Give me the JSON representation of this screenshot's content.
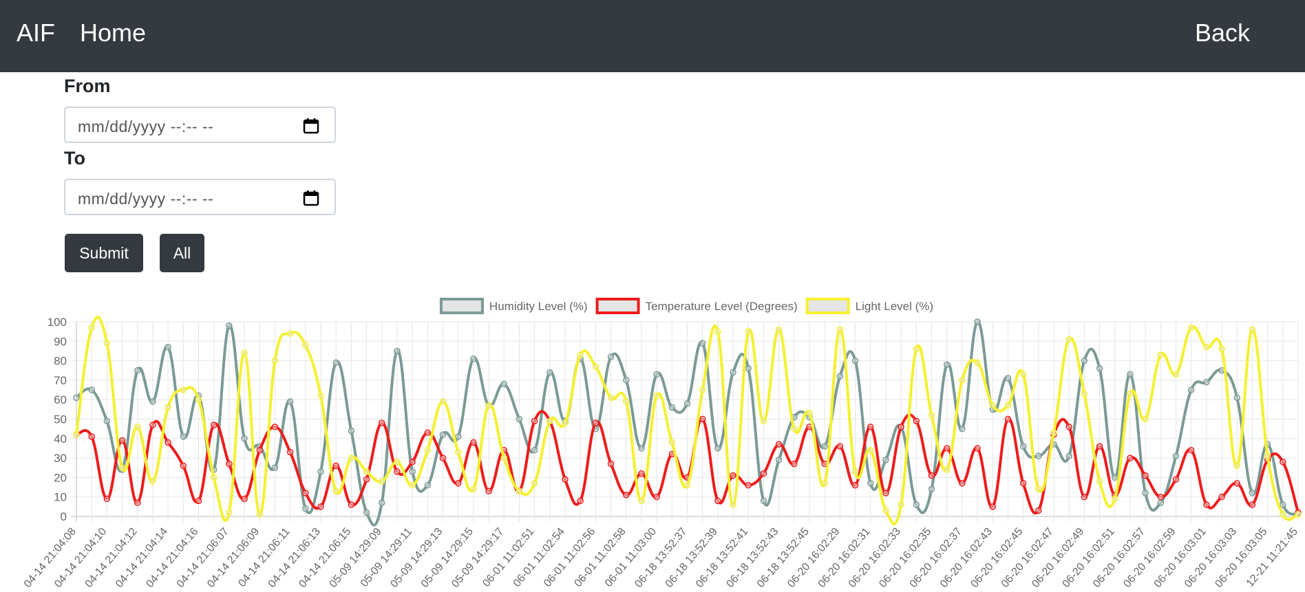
{
  "nav": {
    "brand": "AIF",
    "home": "Home",
    "back": "Back"
  },
  "form": {
    "from_label": "From",
    "from_placeholder": "mm/dd/yyyy --:-- --",
    "to_label": "To",
    "to_placeholder": "mm/dd/yyyy --:-- --",
    "submit": "Submit",
    "all": "All"
  },
  "chart_data": {
    "type": "line",
    "categories": [
      "04-14 21:04:08",
      null,
      "04-14 21:04:10",
      null,
      "04-14 21:04:12",
      null,
      "04-14 21:04:14",
      null,
      "04-14 21:04:16",
      null,
      "04-14 21:06:07",
      null,
      "04-14 21:06:09",
      null,
      "04-14 21:06:11",
      null,
      "04-14 21:06:13",
      null,
      "04-14 21:06:15",
      null,
      "05-09 14:29:09",
      null,
      "05-09 14:29:11",
      null,
      "05-09 14:29:13",
      null,
      "05-09 14:29:15",
      null,
      "05-09 14:29:17",
      null,
      "06-01 11:02:51",
      null,
      "06-01 11:02:54",
      null,
      "06-01 11:02:56",
      null,
      "06-01 11:02:58",
      null,
      "06-01 11:03:00",
      null,
      "06-18 13:52:37",
      null,
      "06-18 13:52:39",
      null,
      "06-18 13:52:41",
      null,
      "06-18 13:52:43",
      null,
      "06-18 13:52:45",
      null,
      "06-20 16:02:29",
      null,
      "06-20 16:02:31",
      null,
      "06-20 16:02:33",
      null,
      "06-20 16:02:35",
      null,
      "06-20 16:02:37",
      null,
      "06-20 16:02:43",
      null,
      "06-20 16:02:45",
      null,
      "06-20 16:02:47",
      null,
      "06-20 16:02:49",
      null,
      "06-20 16:02:51",
      null,
      "06-20 16:02:57",
      null,
      "06-20 16:02:59",
      null,
      "06-20 16:03:01",
      null,
      "06-20 16:03:03",
      null,
      "06-20 16:03:05",
      null,
      "12-21 11:21:45"
    ],
    "series": [
      {
        "name": "Humidity Level (%)",
        "color": "#7a9a95",
        "values": [
          61,
          65,
          49,
          24,
          75,
          59,
          87,
          41,
          62,
          24,
          98,
          40,
          36,
          25,
          59,
          4,
          23,
          79,
          44,
          2,
          7,
          85,
          23,
          16,
          42,
          41,
          81,
          57,
          68,
          50,
          34,
          74,
          49,
          81,
          45,
          82,
          70,
          35,
          73,
          56,
          58,
          89,
          35,
          74,
          76,
          8,
          29,
          51,
          51,
          36,
          72,
          80,
          17,
          29,
          46,
          6,
          14,
          78,
          45,
          100,
          55,
          71,
          36,
          31,
          37,
          31,
          80,
          76,
          20,
          73,
          12,
          7,
          31,
          65,
          69,
          75,
          61,
          12,
          37,
          6,
          1
        ]
      },
      {
        "name": "Temperature Level (Degrees)",
        "color": "#ee1c1c",
        "values": [
          42,
          41,
          9,
          39,
          7,
          47,
          38,
          26,
          8,
          47,
          27,
          9,
          34,
          46,
          33,
          12,
          5,
          26,
          6,
          19,
          48,
          23,
          28,
          43,
          30,
          17,
          38,
          13,
          34,
          13,
          49,
          49,
          19,
          8,
          48,
          27,
          11,
          22,
          10,
          32,
          20,
          50,
          8,
          21,
          16,
          22,
          37,
          27,
          46,
          27,
          36,
          16,
          46,
          12,
          46,
          49,
          21,
          35,
          17,
          35,
          5,
          50,
          17,
          3,
          42,
          46,
          10,
          36,
          11,
          30,
          21,
          10,
          19,
          34,
          6,
          10,
          17,
          6,
          29,
          28,
          2
        ]
      },
      {
        "name": "Light Level (%)",
        "color": "#f5f030",
        "values": [
          42,
          97,
          89,
          25,
          46,
          18,
          56,
          65,
          60,
          20,
          2,
          84,
          1,
          80,
          94,
          88,
          62,
          13,
          30,
          23,
          18,
          28,
          16,
          34,
          59,
          33,
          14,
          57,
          30,
          13,
          17,
          49,
          48,
          83,
          77,
          61,
          59,
          8,
          62,
          38,
          16,
          65,
          95,
          6,
          95,
          49,
          96,
          45,
          53,
          17,
          96,
          23,
          34,
          3,
          6,
          86,
          52,
          24,
          70,
          79,
          57,
          57,
          73,
          14,
          43,
          91,
          63,
          18,
          9,
          63,
          50,
          83,
          73,
          97,
          87,
          86,
          26,
          96,
          31,
          1,
          1
        ]
      }
    ],
    "ylim": [
      0,
      100
    ],
    "yticks": [
      0,
      10,
      20,
      30,
      40,
      50,
      60,
      70,
      80,
      90,
      100
    ],
    "grid": true,
    "legend": "top"
  }
}
